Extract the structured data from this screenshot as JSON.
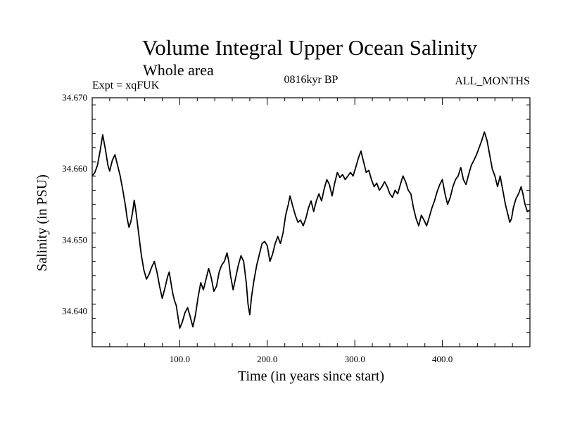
{
  "chart_data": {
    "type": "line",
    "title": "Volume Integral Upper Ocean Salinity",
    "subtitle": "Whole area",
    "expt_label": "Expt = xqFUK",
    "period_label": "0816kyr BP",
    "months_label": "ALL_MONTHS",
    "xlabel": "Time (in years since start)",
    "ylabel": "Salinity (in PSU)",
    "xlim": [
      0,
      500
    ],
    "ylim": [
      34.635,
      34.67
    ],
    "x_ticks": [
      100,
      200,
      300,
      400
    ],
    "x_tick_labels": [
      "100.0",
      "200.0",
      "300.0",
      "400.0"
    ],
    "y_ticks": [
      34.64,
      34.65,
      34.66,
      34.67
    ],
    "y_tick_labels": [
      "34.640",
      "34.650",
      "34.660",
      "34.670"
    ],
    "grid": false,
    "series": [
      {
        "name": "Volume integral upper ocean salinity",
        "color": "#000000",
        "points": [
          [
            0,
            34.659
          ],
          [
            3,
            34.6595
          ],
          [
            6,
            34.6605
          ],
          [
            9,
            34.6625
          ],
          [
            12,
            34.6648
          ],
          [
            15,
            34.6628
          ],
          [
            18,
            34.6605
          ],
          [
            20,
            34.6597
          ],
          [
            23,
            34.6612
          ],
          [
            26,
            34.662
          ],
          [
            29,
            34.6605
          ],
          [
            32,
            34.659
          ],
          [
            35,
            34.657
          ],
          [
            38,
            34.6548
          ],
          [
            40,
            34.653
          ],
          [
            42,
            34.6518
          ],
          [
            44,
            34.6525
          ],
          [
            46,
            34.6538
          ],
          [
            48,
            34.6556
          ],
          [
            50,
            34.654
          ],
          [
            53,
            34.651
          ],
          [
            56,
            34.648
          ],
          [
            59,
            34.6458
          ],
          [
            62,
            34.6445
          ],
          [
            65,
            34.6452
          ],
          [
            68,
            34.6462
          ],
          [
            71,
            34.647
          ],
          [
            74,
            34.6455
          ],
          [
            77,
            34.6435
          ],
          [
            80,
            34.6418
          ],
          [
            83,
            34.6432
          ],
          [
            86,
            34.6448
          ],
          [
            88,
            34.6455
          ],
          [
            90,
            34.644
          ],
          [
            92,
            34.6425
          ],
          [
            94,
            34.6415
          ],
          [
            96,
            34.6408
          ],
          [
            98,
            34.6392
          ],
          [
            100,
            34.6376
          ],
          [
            103,
            34.6385
          ],
          [
            106,
            34.6398
          ],
          [
            109,
            34.6405
          ],
          [
            112,
            34.6392
          ],
          [
            115,
            34.6378
          ],
          [
            118,
            34.6395
          ],
          [
            121,
            34.642
          ],
          [
            124,
            34.644
          ],
          [
            127,
            34.643
          ],
          [
            130,
            34.6445
          ],
          [
            133,
            34.646
          ],
          [
            136,
            34.6447
          ],
          [
            139,
            34.6428
          ],
          [
            142,
            34.6435
          ],
          [
            145,
            34.6455
          ],
          [
            148,
            34.6465
          ],
          [
            151,
            34.647
          ],
          [
            154,
            34.6482
          ],
          [
            156,
            34.647
          ],
          [
            158,
            34.645
          ],
          [
            161,
            34.643
          ],
          [
            164,
            34.6448
          ],
          [
            167,
            34.6465
          ],
          [
            170,
            34.6478
          ],
          [
            173,
            34.647
          ],
          [
            176,
            34.644
          ],
          [
            178,
            34.641
          ],
          [
            180,
            34.6395
          ],
          [
            182,
            34.642
          ],
          [
            185,
            34.6445
          ],
          [
            188,
            34.6465
          ],
          [
            191,
            34.648
          ],
          [
            194,
            34.6495
          ],
          [
            197,
            34.6498
          ],
          [
            200,
            34.6492
          ],
          [
            203,
            34.647
          ],
          [
            206,
            34.648
          ],
          [
            209,
            34.6495
          ],
          [
            212,
            34.6505
          ],
          [
            215,
            34.6495
          ],
          [
            218,
            34.651
          ],
          [
            221,
            34.6535
          ],
          [
            224,
            34.655
          ],
          [
            226,
            34.6562
          ],
          [
            229,
            34.6548
          ],
          [
            232,
            34.6535
          ],
          [
            235,
            34.6525
          ],
          [
            238,
            34.6528
          ],
          [
            241,
            34.652
          ],
          [
            244,
            34.653
          ],
          [
            247,
            34.6545
          ],
          [
            250,
            34.6555
          ],
          [
            253,
            34.654
          ],
          [
            256,
            34.6555
          ],
          [
            259,
            34.6565
          ],
          [
            262,
            34.6555
          ],
          [
            265,
            34.6572
          ],
          [
            268,
            34.6585
          ],
          [
            271,
            34.6578
          ],
          [
            274,
            34.6562
          ],
          [
            277,
            34.658
          ],
          [
            280,
            34.6595
          ],
          [
            283,
            34.6588
          ],
          [
            286,
            34.6592
          ],
          [
            289,
            34.6585
          ],
          [
            292,
            34.659
          ],
          [
            295,
            34.6595
          ],
          [
            298,
            34.659
          ],
          [
            301,
            34.6602
          ],
          [
            304,
            34.6615
          ],
          [
            307,
            34.6625
          ],
          [
            310,
            34.661
          ],
          [
            313,
            34.6595
          ],
          [
            316,
            34.6598
          ],
          [
            319,
            34.6585
          ],
          [
            322,
            34.6575
          ],
          [
            325,
            34.658
          ],
          [
            328,
            34.657
          ],
          [
            331,
            34.6575
          ],
          [
            334,
            34.6582
          ],
          [
            337,
            34.6575
          ],
          [
            340,
            34.6565
          ],
          [
            343,
            34.656
          ],
          [
            346,
            34.657
          ],
          [
            349,
            34.6565
          ],
          [
            352,
            34.6578
          ],
          [
            355,
            34.659
          ],
          [
            358,
            34.6582
          ],
          [
            361,
            34.657
          ],
          [
            364,
            34.6565
          ],
          [
            367,
            34.6545
          ],
          [
            370,
            34.653
          ],
          [
            373,
            34.652
          ],
          [
            376,
            34.6535
          ],
          [
            379,
            34.6528
          ],
          [
            382,
            34.652
          ],
          [
            385,
            34.6532
          ],
          [
            388,
            34.6545
          ],
          [
            391,
            34.6555
          ],
          [
            394,
            34.6568
          ],
          [
            397,
            34.6578
          ],
          [
            400,
            34.6585
          ],
          [
            403,
            34.6565
          ],
          [
            406,
            34.655
          ],
          [
            409,
            34.656
          ],
          [
            412,
            34.6575
          ],
          [
            415,
            34.6585
          ],
          [
            418,
            34.659
          ],
          [
            421,
            34.6602
          ],
          [
            424,
            34.6585
          ],
          [
            427,
            34.6578
          ],
          [
            430,
            34.6592
          ],
          [
            433,
            34.6605
          ],
          [
            436,
            34.6612
          ],
          [
            439,
            34.662
          ],
          [
            442,
            34.663
          ],
          [
            445,
            34.664
          ],
          [
            448,
            34.6652
          ],
          [
            451,
            34.664
          ],
          [
            454,
            34.662
          ],
          [
            457,
            34.66
          ],
          [
            460,
            34.659
          ],
          [
            463,
            34.6575
          ],
          [
            466,
            34.659
          ],
          [
            469,
            34.657
          ],
          [
            472,
            34.655
          ],
          [
            475,
            34.6535
          ],
          [
            477,
            34.6525
          ],
          [
            479,
            34.653
          ],
          [
            481,
            34.6545
          ],
          [
            484,
            34.6558
          ],
          [
            487,
            34.6565
          ],
          [
            490,
            34.6575
          ],
          [
            492,
            34.6565
          ],
          [
            494,
            34.6552
          ],
          [
            497,
            34.654
          ],
          [
            500,
            34.6542
          ]
        ]
      }
    ]
  }
}
